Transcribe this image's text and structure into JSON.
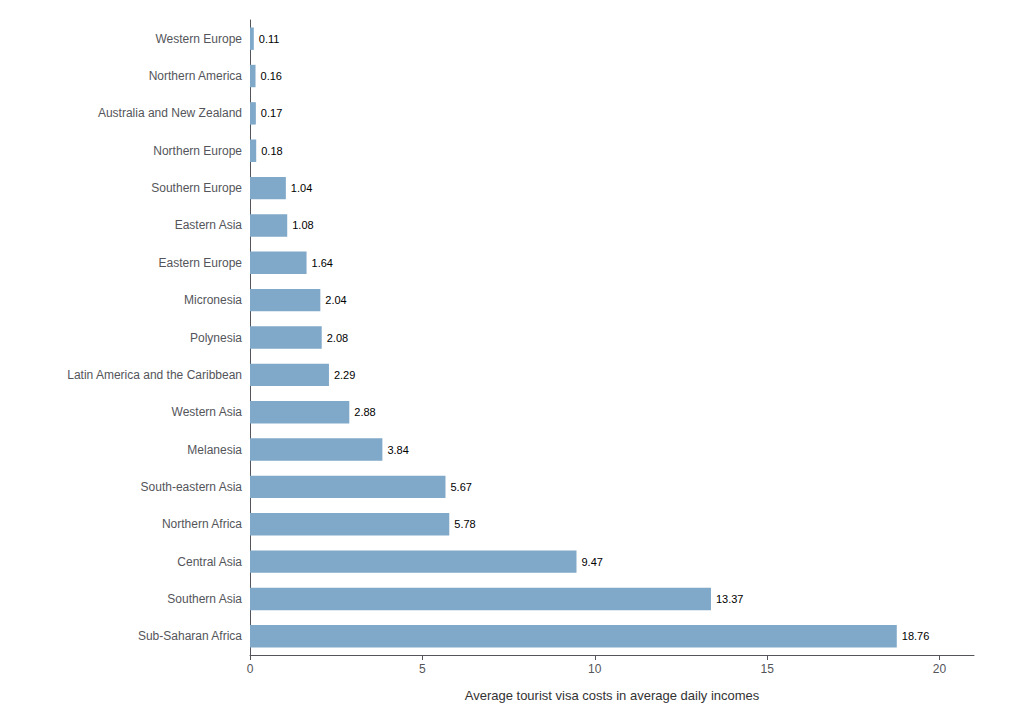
{
  "chart_data": {
    "type": "bar",
    "orientation": "horizontal",
    "xlabel": "Average tourist visa costs in average daily incomes",
    "categories": [
      "Western Europe",
      "Northern America",
      "Australia and New Zealand",
      "Northern Europe",
      "Southern Europe",
      "Eastern Asia",
      "Eastern Europe",
      "Micronesia",
      "Polynesia",
      "Latin America and the Caribbean",
      "Western Asia",
      "Melanesia",
      "South-eastern Asia",
      "Northern Africa",
      "Central Asia",
      "Southern Asia",
      "Sub-Saharan Africa"
    ],
    "values": [
      0.11,
      0.16,
      0.17,
      0.18,
      1.04,
      1.08,
      1.64,
      2.04,
      2.08,
      2.29,
      2.88,
      3.84,
      5.67,
      5.78,
      9.47,
      13.37,
      18.76
    ],
    "color": "#7fa8c9",
    "xlim": [
      0,
      21
    ],
    "xticks": [
      0,
      5,
      10,
      15,
      20
    ],
    "data_labels": true,
    "grid": false
  }
}
